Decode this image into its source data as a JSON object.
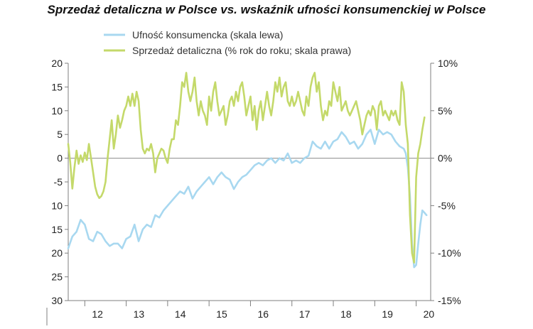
{
  "title": "Sprzedaż detaliczna w Polsce vs. wskaźnik ufności konsumenckiej w Polsce",
  "colors": {
    "confidence": "#a8d8f0",
    "retail": "#c4d96a",
    "axis": "#7f7f7f",
    "text": "#222222"
  },
  "chart_data": {
    "type": "line",
    "x_unit": "year (fractional, 20xx)",
    "xlim": [
      11.6,
      20.35
    ],
    "x_ticks": [
      {
        "value": 12.1,
        "label": "12"
      },
      {
        "value": 13.1,
        "label": "13"
      },
      {
        "value": 14.1,
        "label": "14"
      },
      {
        "value": 15.1,
        "label": "15"
      },
      {
        "value": 16.1,
        "label": "16"
      },
      {
        "value": 17.1,
        "label": "17"
      },
      {
        "value": 18.1,
        "label": "18"
      },
      {
        "value": 19.1,
        "label": "19"
      },
      {
        "value": 20.1,
        "label": "20"
      }
    ],
    "y_left": {
      "ylim": [
        -30,
        20
      ],
      "ticks": [
        {
          "value": 20,
          "label": "20"
        },
        {
          "value": 15,
          "label": "15"
        },
        {
          "value": 10,
          "label": "10"
        },
        {
          "value": 5,
          "label": "5"
        },
        {
          "value": 0,
          "label": "0"
        },
        {
          "value": -5,
          "label": "-5"
        },
        {
          "value": -10,
          "label": "10"
        },
        {
          "value": -15,
          "label": "15"
        },
        {
          "value": -20,
          "label": "20"
        },
        {
          "value": -25,
          "label": "25"
        },
        {
          "value": -30,
          "label": "30"
        }
      ]
    },
    "y_right": {
      "ylim": [
        -15,
        10
      ],
      "ticks": [
        {
          "value": 10,
          "label": "10%"
        },
        {
          "value": 5,
          "label": "5%"
        },
        {
          "value": 0,
          "label": "0%"
        },
        {
          "value": -5,
          "label": "-5%"
        },
        {
          "value": -10,
          "label": "-10%"
        },
        {
          "value": -15,
          "label": "-15%"
        }
      ]
    },
    "series": [
      {
        "name": "Ufność konsumencka (skala lewa)",
        "axis": "left",
        "color": "#a8d8f0",
        "points": [
          [
            11.6,
            -19
          ],
          [
            11.7,
            -16.5
          ],
          [
            11.8,
            -15.5
          ],
          [
            11.9,
            -13
          ],
          [
            12.0,
            -14
          ],
          [
            12.1,
            -17
          ],
          [
            12.2,
            -17.5
          ],
          [
            12.3,
            -15.5
          ],
          [
            12.4,
            -16
          ],
          [
            12.5,
            -17.5
          ],
          [
            12.6,
            -18.5
          ],
          [
            12.7,
            -18
          ],
          [
            12.8,
            -18
          ],
          [
            12.9,
            -19
          ],
          [
            13.0,
            -17
          ],
          [
            13.1,
            -16.5
          ],
          [
            13.2,
            -14
          ],
          [
            13.3,
            -17.5
          ],
          [
            13.4,
            -15
          ],
          [
            13.5,
            -14
          ],
          [
            13.6,
            -14.5
          ],
          [
            13.7,
            -12
          ],
          [
            13.8,
            -12.5
          ],
          [
            13.9,
            -11
          ],
          [
            14.0,
            -10
          ],
          [
            14.1,
            -9
          ],
          [
            14.2,
            -8
          ],
          [
            14.3,
            -7
          ],
          [
            14.4,
            -7.5
          ],
          [
            14.5,
            -6
          ],
          [
            14.6,
            -8.5
          ],
          [
            14.7,
            -7
          ],
          [
            14.8,
            -6
          ],
          [
            14.9,
            -5
          ],
          [
            15.0,
            -4
          ],
          [
            15.1,
            -5.5
          ],
          [
            15.2,
            -4
          ],
          [
            15.3,
            -3
          ],
          [
            15.4,
            -4
          ],
          [
            15.5,
            -4.5
          ],
          [
            15.6,
            -6.5
          ],
          [
            15.7,
            -5
          ],
          [
            15.8,
            -4
          ],
          [
            15.9,
            -3.5
          ],
          [
            16.0,
            -2.5
          ],
          [
            16.1,
            -1.5
          ],
          [
            16.2,
            -1
          ],
          [
            16.3,
            -1.5
          ],
          [
            16.4,
            -0.5
          ],
          [
            16.5,
            0
          ],
          [
            16.6,
            -1
          ],
          [
            16.7,
            0
          ],
          [
            16.8,
            -0.5
          ],
          [
            16.9,
            1
          ],
          [
            17.0,
            -1
          ],
          [
            17.1,
            -0.5
          ],
          [
            17.2,
            -1
          ],
          [
            17.3,
            0
          ],
          [
            17.4,
            0.5
          ],
          [
            17.5,
            3.5
          ],
          [
            17.6,
            2.5
          ],
          [
            17.7,
            2
          ],
          [
            17.8,
            3.5
          ],
          [
            17.9,
            2
          ],
          [
            18.0,
            3.5
          ],
          [
            18.1,
            4
          ],
          [
            18.2,
            5.5
          ],
          [
            18.3,
            4.5
          ],
          [
            18.4,
            3
          ],
          [
            18.5,
            3.5
          ],
          [
            18.6,
            2
          ],
          [
            18.7,
            3
          ],
          [
            18.8,
            5
          ],
          [
            18.9,
            6
          ],
          [
            19.0,
            3
          ],
          [
            19.1,
            6
          ],
          [
            19.2,
            5
          ],
          [
            19.3,
            5.5
          ],
          [
            19.4,
            5
          ],
          [
            19.5,
            3.5
          ],
          [
            19.6,
            2.5
          ],
          [
            19.7,
            2
          ],
          [
            19.75,
            1
          ],
          [
            19.8,
            -2
          ],
          [
            19.85,
            -8
          ],
          [
            19.9,
            -18
          ],
          [
            19.95,
            -23
          ],
          [
            20.0,
            -22.5
          ],
          [
            20.05,
            -18
          ],
          [
            20.1,
            -14
          ],
          [
            20.15,
            -11
          ],
          [
            20.2,
            -11.5
          ],
          [
            20.25,
            -12
          ]
        ]
      },
      {
        "name": "Sprzedaż detaliczna (% rok do roku; skala prawa)",
        "axis": "right",
        "color": "#c4d96a",
        "points": [
          [
            11.6,
            1.5
          ],
          [
            11.65,
            -0.5
          ],
          [
            11.7,
            -3.2
          ],
          [
            11.75,
            -1
          ],
          [
            11.8,
            0.8
          ],
          [
            11.85,
            -0.6
          ],
          [
            11.9,
            0.3
          ],
          [
            11.95,
            -0.4
          ],
          [
            12.0,
            0.6
          ],
          [
            12.05,
            -0.2
          ],
          [
            12.1,
            1.5
          ],
          [
            12.15,
            0
          ],
          [
            12.2,
            -1.5
          ],
          [
            12.25,
            -3
          ],
          [
            12.3,
            -3.8
          ],
          [
            12.35,
            -4.2
          ],
          [
            12.4,
            -4
          ],
          [
            12.45,
            -3.5
          ],
          [
            12.5,
            -2.5
          ],
          [
            12.55,
            0
          ],
          [
            12.6,
            2
          ],
          [
            12.65,
            4
          ],
          [
            12.7,
            1
          ],
          [
            12.75,
            2.5
          ],
          [
            12.8,
            4.5
          ],
          [
            12.85,
            3.2
          ],
          [
            12.9,
            4
          ],
          [
            12.95,
            5
          ],
          [
            13.0,
            5.5
          ],
          [
            13.05,
            6.5
          ],
          [
            13.1,
            5.5
          ],
          [
            13.15,
            6.8
          ],
          [
            13.2,
            5.5
          ],
          [
            13.25,
            7
          ],
          [
            13.3,
            6
          ],
          [
            13.35,
            3
          ],
          [
            13.4,
            1
          ],
          [
            13.45,
            0.5
          ],
          [
            13.5,
            1
          ],
          [
            13.55,
            0.8
          ],
          [
            13.6,
            1.5
          ],
          [
            13.65,
            0.5
          ],
          [
            13.7,
            -1.5
          ],
          [
            13.75,
            0
          ],
          [
            13.8,
            0.5
          ],
          [
            13.85,
            1
          ],
          [
            13.9,
            0.8
          ],
          [
            13.95,
            0
          ],
          [
            14.0,
            -0.5
          ],
          [
            14.05,
            1
          ],
          [
            14.1,
            2
          ],
          [
            14.15,
            2
          ],
          [
            14.2,
            4
          ],
          [
            14.25,
            3.5
          ],
          [
            14.3,
            5.5
          ],
          [
            14.35,
            8
          ],
          [
            14.4,
            7.5
          ],
          [
            14.45,
            9
          ],
          [
            14.5,
            7
          ],
          [
            14.55,
            6
          ],
          [
            14.6,
            7
          ],
          [
            14.65,
            8.5
          ],
          [
            14.7,
            6
          ],
          [
            14.75,
            4.5
          ],
          [
            14.8,
            6
          ],
          [
            14.85,
            5
          ],
          [
            14.9,
            4.5
          ],
          [
            14.95,
            3.5
          ],
          [
            15.0,
            6.5
          ],
          [
            15.05,
            5
          ],
          [
            15.1,
            7
          ],
          [
            15.15,
            8
          ],
          [
            15.2,
            6
          ],
          [
            15.25,
            4.5
          ],
          [
            15.3,
            5
          ],
          [
            15.35,
            5.5
          ],
          [
            15.4,
            3.5
          ],
          [
            15.45,
            4.5
          ],
          [
            15.5,
            6
          ],
          [
            15.55,
            6.5
          ],
          [
            15.6,
            5.5
          ],
          [
            15.65,
            7
          ],
          [
            15.7,
            6
          ],
          [
            15.75,
            7.5
          ],
          [
            15.8,
            8
          ],
          [
            15.85,
            6.5
          ],
          [
            15.9,
            4.5
          ],
          [
            15.95,
            5.5
          ],
          [
            16.0,
            6.5
          ],
          [
            16.05,
            4
          ],
          [
            16.1,
            5.5
          ],
          [
            16.15,
            3
          ],
          [
            16.2,
            5
          ],
          [
            16.25,
            6
          ],
          [
            16.3,
            4
          ],
          [
            16.35,
            5.5
          ],
          [
            16.4,
            7
          ],
          [
            16.45,
            5.5
          ],
          [
            16.5,
            4.5
          ],
          [
            16.55,
            6
          ],
          [
            16.6,
            8
          ],
          [
            16.65,
            7
          ],
          [
            16.7,
            8.5
          ],
          [
            16.75,
            6.5
          ],
          [
            16.8,
            7.5
          ],
          [
            16.85,
            8
          ],
          [
            16.9,
            6
          ],
          [
            16.95,
            5.5
          ],
          [
            17.0,
            6.5
          ],
          [
            17.05,
            5.5
          ],
          [
            17.1,
            6
          ],
          [
            17.15,
            7
          ],
          [
            17.2,
            6
          ],
          [
            17.25,
            5
          ],
          [
            17.3,
            4.5
          ],
          [
            17.35,
            6.5
          ],
          [
            17.4,
            5.5
          ],
          [
            17.45,
            7.5
          ],
          [
            17.5,
            8.5
          ],
          [
            17.55,
            9
          ],
          [
            17.6,
            7
          ],
          [
            17.65,
            8
          ],
          [
            17.7,
            5.5
          ],
          [
            17.75,
            4
          ],
          [
            17.8,
            5
          ],
          [
            17.85,
            4.5
          ],
          [
            17.9,
            6
          ],
          [
            17.95,
            5.5
          ],
          [
            18.0,
            8
          ],
          [
            18.05,
            7
          ],
          [
            18.1,
            6
          ],
          [
            18.15,
            7.5
          ],
          [
            18.2,
            5
          ],
          [
            18.25,
            5.5
          ],
          [
            18.3,
            6
          ],
          [
            18.35,
            5
          ],
          [
            18.4,
            4.5
          ],
          [
            18.45,
            5
          ],
          [
            18.5,
            5.5
          ],
          [
            18.55,
            6
          ],
          [
            18.6,
            5
          ],
          [
            18.65,
            4
          ],
          [
            18.7,
            2.5
          ],
          [
            18.75,
            3.5
          ],
          [
            18.8,
            4.5
          ],
          [
            18.85,
            5
          ],
          [
            18.9,
            4.5
          ],
          [
            18.95,
            5.5
          ],
          [
            19.0,
            5
          ],
          [
            19.05,
            3
          ],
          [
            19.1,
            5.5
          ],
          [
            19.15,
            6
          ],
          [
            19.2,
            4.5
          ],
          [
            19.25,
            5
          ],
          [
            19.3,
            4.5
          ],
          [
            19.35,
            4
          ],
          [
            19.4,
            5
          ],
          [
            19.45,
            4.5
          ],
          [
            19.5,
            5
          ],
          [
            19.55,
            4
          ],
          [
            19.6,
            3.5
          ],
          [
            19.65,
            8
          ],
          [
            19.7,
            7
          ],
          [
            19.75,
            3.5
          ],
          [
            19.8,
            1.5
          ],
          [
            19.85,
            -6
          ],
          [
            19.9,
            -10
          ],
          [
            19.95,
            -11
          ],
          [
            20.0,
            -2
          ],
          [
            20.05,
            0.5
          ],
          [
            20.1,
            1.5
          ],
          [
            20.15,
            3
          ],
          [
            20.2,
            4.3
          ]
        ]
      }
    ],
    "legend": {
      "placement": "top-center",
      "entries": [
        {
          "label": "Ufność konsumencka (skala lewa)",
          "color": "#a8d8f0"
        },
        {
          "label": "Sprzedaż detaliczna (% rok do roku; skala prawa)",
          "color": "#c4d96a"
        }
      ]
    },
    "grid": false,
    "zero_line": true
  }
}
